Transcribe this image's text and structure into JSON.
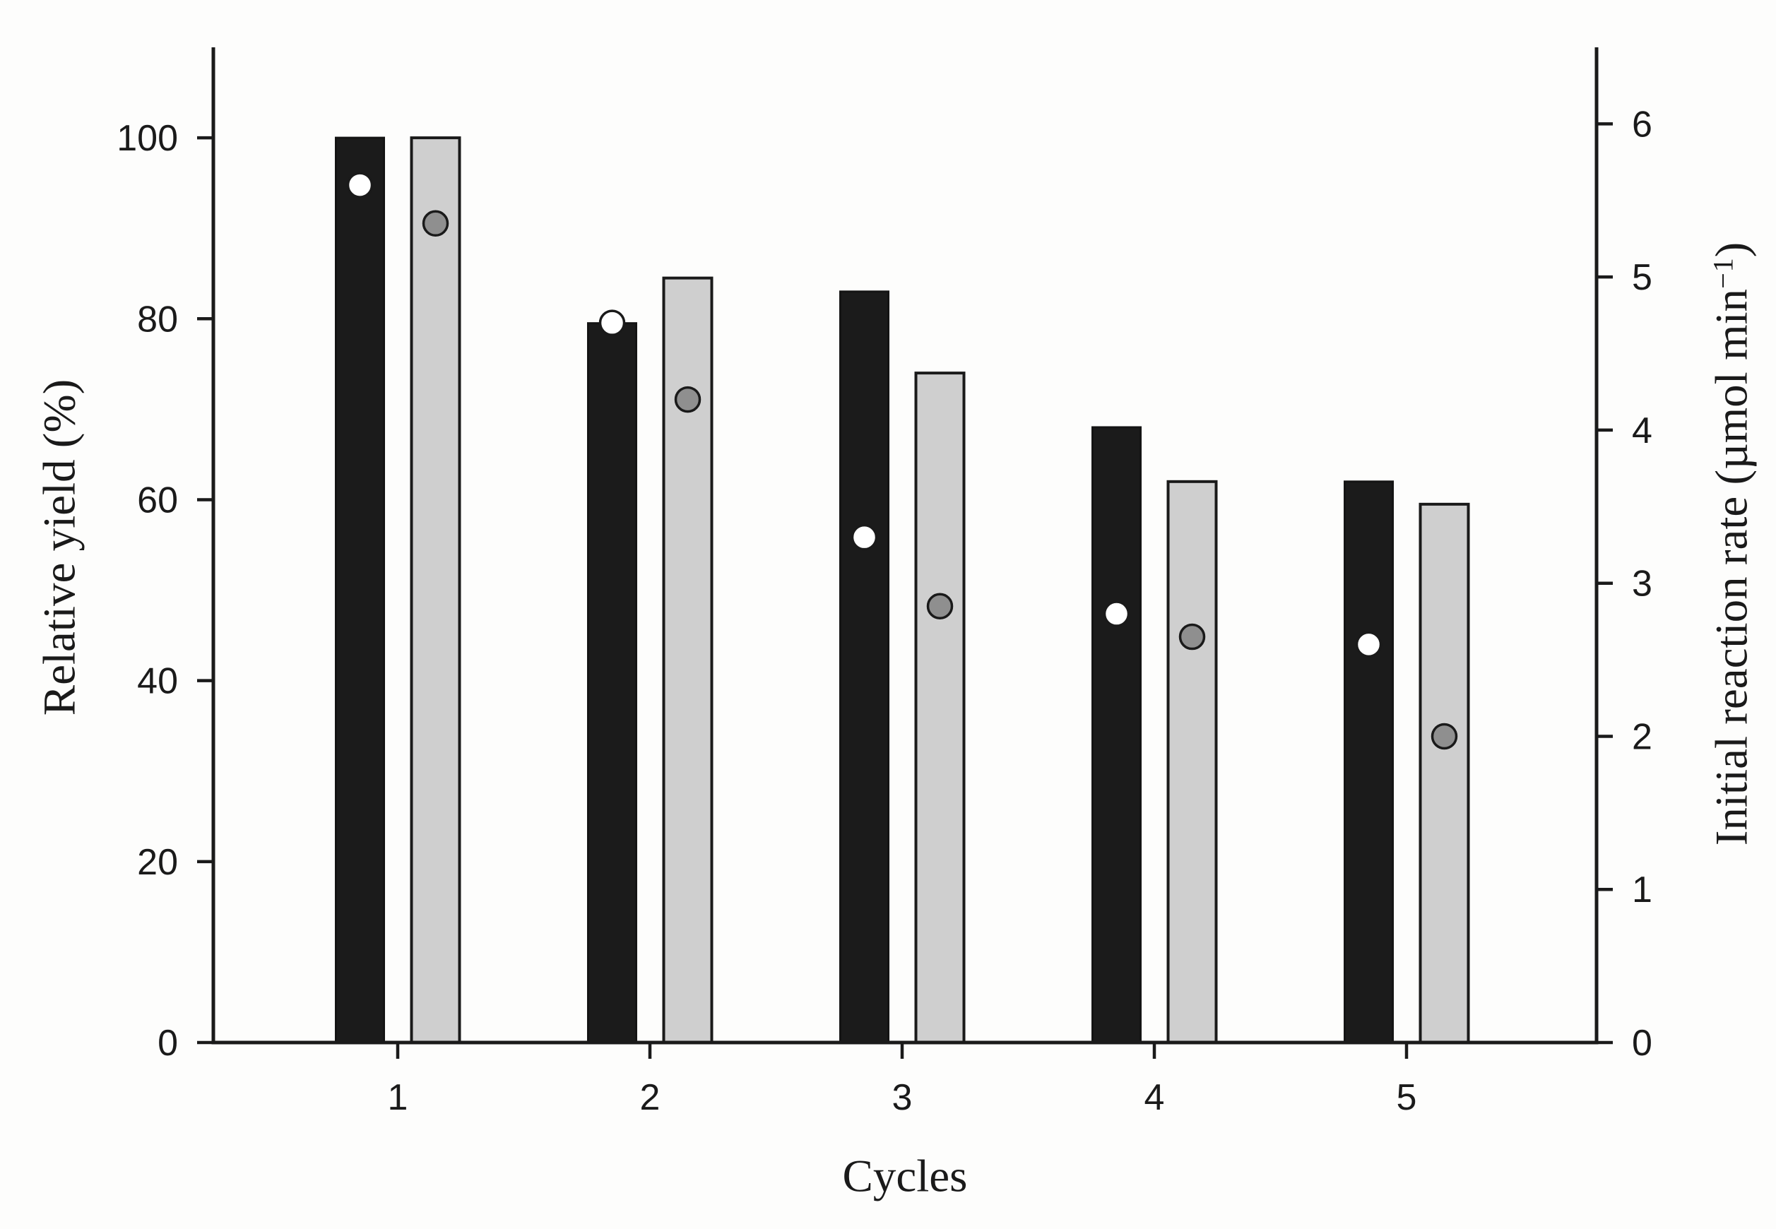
{
  "figure": {
    "background": "#fdfdfc",
    "ink": "#1a1a1a"
  },
  "chart_data": {
    "type": "bar",
    "subtype": "grouped-bars-with-circle-marker-overlay-dual-axis",
    "categories": [
      "1",
      "2",
      "3",
      "4",
      "5"
    ],
    "xlabel": "Cycles",
    "left_axis": {
      "label": "Relative yield (%)",
      "ticks": [
        0,
        20,
        40,
        60,
        80,
        100
      ],
      "range": [
        0,
        110
      ]
    },
    "right_axis": {
      "label": "Initial reaction rate (µmol min⁻¹)",
      "label_prefix": "Initial reaction rate (µmol min",
      "label_superscript": "−1",
      "label_suffix": ")",
      "ticks": [
        0,
        1,
        2,
        3,
        4,
        5,
        6
      ],
      "range": [
        0,
        6.5
      ]
    },
    "series": [
      {
        "name": "Relative yield – black bars",
        "type": "bar",
        "axis": "left",
        "fill": "#1b1b1b",
        "stroke": "#141414",
        "values": [
          100,
          79.5,
          83,
          68,
          62
        ]
      },
      {
        "name": "Relative yield – gray bars",
        "type": "bar",
        "axis": "left",
        "fill": "#cfcfcf",
        "stroke": "#1a1a1a",
        "values": [
          100,
          84.5,
          74,
          62,
          59.5
        ]
      },
      {
        "name": "Initial reaction rate – white circles",
        "type": "scatter",
        "axis": "right",
        "fill": "#ffffff",
        "stroke": "#1a1a1a",
        "values": [
          5.6,
          4.7,
          3.3,
          2.8,
          2.6
        ]
      },
      {
        "name": "Initial reaction rate – gray circles",
        "type": "scatter",
        "axis": "right",
        "fill": "#8f8f8f",
        "stroke": "#1a1a1a",
        "values": [
          5.35,
          4.2,
          2.85,
          2.65,
          2.0
        ]
      }
    ],
    "grid": false,
    "legend": "none"
  }
}
